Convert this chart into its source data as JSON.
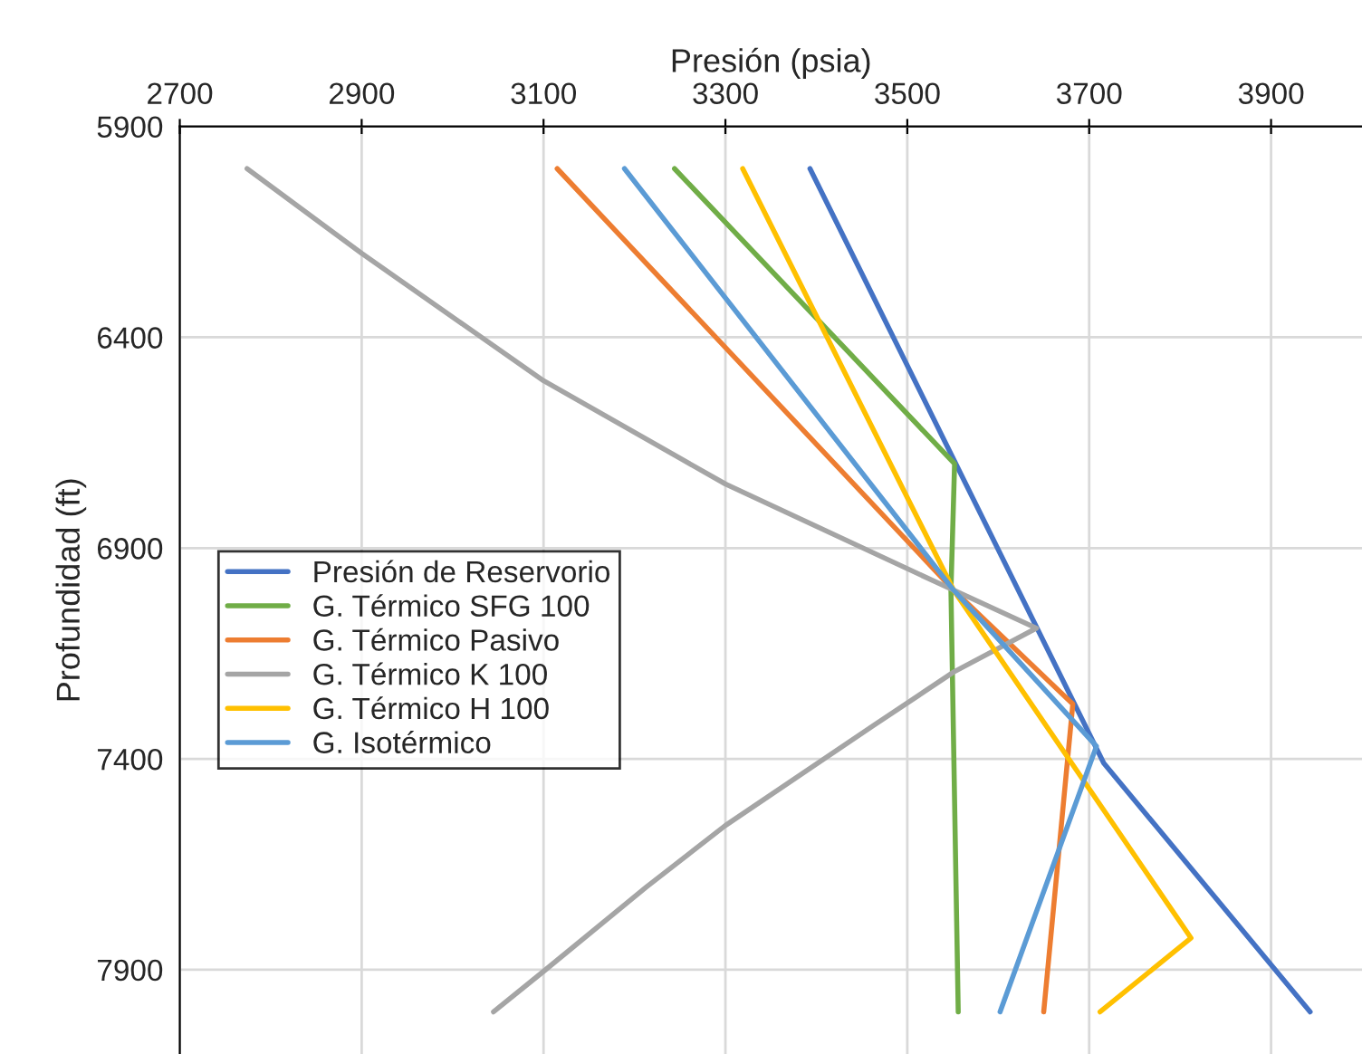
{
  "chart_data": {
    "type": "line",
    "xlabel": "Presión (psia)",
    "ylabel": "Profundidad (ft)",
    "xlim": [
      2700,
      4000
    ],
    "xticks": [
      2700,
      2900,
      3100,
      3300,
      3500,
      3700,
      3900
    ],
    "ylim": [
      8100,
      5900
    ],
    "yticks": [
      5900,
      6400,
      6900,
      7400,
      7900
    ],
    "grid": true,
    "legend": "left",
    "marker": "none",
    "line_style": "solid",
    "series": [
      {
        "name": "Presión de Reservorio",
        "color": "#4472c4",
        "x": [
          3393,
          3716,
          3943
        ],
        "values": [
          6000,
          7410,
          8000
        ]
      },
      {
        "name": "G. Térmico SFG 100",
        "color": "#70ad47",
        "x": [
          3244,
          3552,
          3548,
          3556
        ],
        "values": [
          6000,
          6700,
          7000,
          8000
        ]
      },
      {
        "name": "G. Térmico Pasivo",
        "color": "#ed7d31",
        "x": [
          3115,
          3551,
          3682,
          3650
        ],
        "values": [
          6000,
          7000,
          7270,
          8000
        ]
      },
      {
        "name": "G. Térmico K 100",
        "color": "#a5a5a5",
        "x": [
          2774,
          2900,
          3100,
          3300,
          3551,
          3642,
          3551,
          3462,
          3300,
          3213,
          3100,
          3045
        ],
        "values": [
          6000,
          6201,
          6503,
          6748,
          7000,
          7090,
          7194,
          7322,
          7558,
          7704,
          7904,
          8000
        ]
      },
      {
        "name": "G. Térmico H 100",
        "color": "#ffc000",
        "x": [
          3319,
          3551,
          3812,
          3712
        ],
        "values": [
          6000,
          7000,
          7825,
          8000
        ]
      },
      {
        "name": "G. Isotérmico",
        "color": "#5b9bd5",
        "x": [
          3189,
          3551,
          3708,
          3602
        ],
        "values": [
          6000,
          7000,
          7370,
          8000
        ]
      }
    ]
  }
}
